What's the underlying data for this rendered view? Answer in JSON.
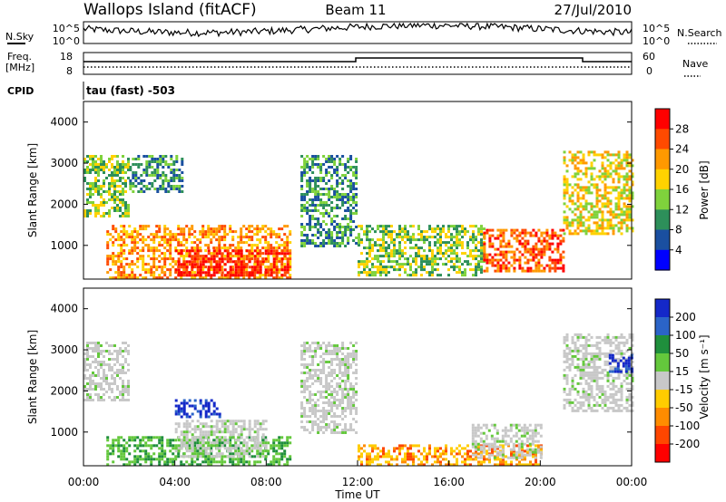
{
  "header": {
    "station": "Wallops Island (fitACF)",
    "beam": "Beam 11",
    "date": "27/Jul/2010"
  },
  "aux_panels": {
    "nsky_label": "N.Sky",
    "nsearch_label": "N.Search",
    "noise_ticks": [
      "10^5",
      "10^0"
    ],
    "freq_label_1": "Freq.",
    "freq_label_2": "[MHz]",
    "freq_ticks": [
      "18",
      "8"
    ],
    "nave_label": "Nave",
    "nave_ticks": [
      "60",
      "0"
    ],
    "cpid_label": "CPID",
    "cpid_value": "tau (fast) -503"
  },
  "colorbars": {
    "power": {
      "label": "Power [dB]",
      "ticks": [
        "28",
        "24",
        "20",
        "16",
        "12",
        "8",
        "4"
      ],
      "colors": [
        "#ff0000",
        "#ff4a00",
        "#ff9900",
        "#ffd200",
        "#7fd23c",
        "#2d8f5a",
        "#1a4fa0",
        "#0000ff"
      ]
    },
    "velocity": {
      "label": "Velocity [m s⁻¹]",
      "ticks": [
        "200",
        "100",
        "50",
        "15",
        "-15",
        "-50",
        "-100",
        "-200"
      ],
      "colors": [
        "#1428c8",
        "#2b64c8",
        "#1f8f3c",
        "#64c83c",
        "#c8c8c8",
        "#ffcc00",
        "#ff8c00",
        "#ff4600",
        "#ff0000"
      ]
    }
  },
  "chart_data": [
    {
      "type": "heatmap",
      "name": "power",
      "ylabel": "Slant Range [km]",
      "ylim": [
        180,
        4500
      ],
      "xlim": [
        0,
        24
      ],
      "yticks": [
        "4000",
        "3000",
        "2000",
        "1000"
      ],
      "yticks_values": [
        4000,
        3000,
        2000,
        1000
      ],
      "regions": [
        {
          "t": [
            0.0,
            2.0
          ],
          "r": [
            1700,
            3200
          ],
          "level": 3
        },
        {
          "t": [
            2.0,
            4.3
          ],
          "r": [
            2300,
            3200
          ],
          "level": 2
        },
        {
          "t": [
            1.0,
            9.0
          ],
          "r": [
            200,
            1500
          ],
          "level": 5
        },
        {
          "t": [
            4.0,
            9.0
          ],
          "r": [
            300,
            900
          ],
          "level": 7
        },
        {
          "t": [
            9.5,
            12.0
          ],
          "r": [
            1000,
            3200
          ],
          "level": 2
        },
        {
          "t": [
            12.0,
            17.5
          ],
          "r": [
            300,
            1500
          ],
          "level": 3
        },
        {
          "t": [
            17.5,
            21.0
          ],
          "r": [
            400,
            1400
          ],
          "level": 6
        },
        {
          "t": [
            21.0,
            24.0
          ],
          "r": [
            1300,
            3300
          ],
          "level": 4
        }
      ]
    },
    {
      "type": "heatmap",
      "name": "velocity",
      "ylabel": "Slant Range [km]",
      "ylim": [
        180,
        4500
      ],
      "xlim": [
        0,
        24
      ],
      "yticks": [
        "4000",
        "3000",
        "2000",
        "1000"
      ],
      "yticks_values": [
        4000,
        3000,
        2000,
        1000
      ],
      "xticks": [
        "00:00",
        "04:00",
        "08:00",
        "12:00",
        "16:00",
        "20:00",
        "00:00"
      ],
      "xticks_values": [
        0,
        4,
        8,
        12,
        16,
        20,
        24
      ],
      "xlabel": "Time UT",
      "regions": [
        {
          "t": [
            0.0,
            2.0
          ],
          "r": [
            1800,
            3200
          ],
          "vel": 0
        },
        {
          "t": [
            4.0,
            6.0
          ],
          "r": [
            1400,
            1800
          ],
          "vel": 200
        },
        {
          "t": [
            1.0,
            9.0
          ],
          "r": [
            200,
            900
          ],
          "vel": 50
        },
        {
          "t": [
            4.0,
            8.0
          ],
          "r": [
            400,
            1300
          ],
          "vel": 0
        },
        {
          "t": [
            9.5,
            12.0
          ],
          "r": [
            1000,
            3200
          ],
          "vel": 0
        },
        {
          "t": [
            12.0,
            20.0
          ],
          "r": [
            200,
            700
          ],
          "vel": -50
        },
        {
          "t": [
            17.0,
            20.0
          ],
          "r": [
            400,
            1200
          ],
          "vel": 0
        },
        {
          "t": [
            21.0,
            24.0
          ],
          "r": [
            1500,
            3400
          ],
          "vel": 0
        },
        {
          "t": [
            23.0,
            24.0
          ],
          "r": [
            2500,
            2900
          ],
          "vel": 200
        }
      ]
    }
  ]
}
